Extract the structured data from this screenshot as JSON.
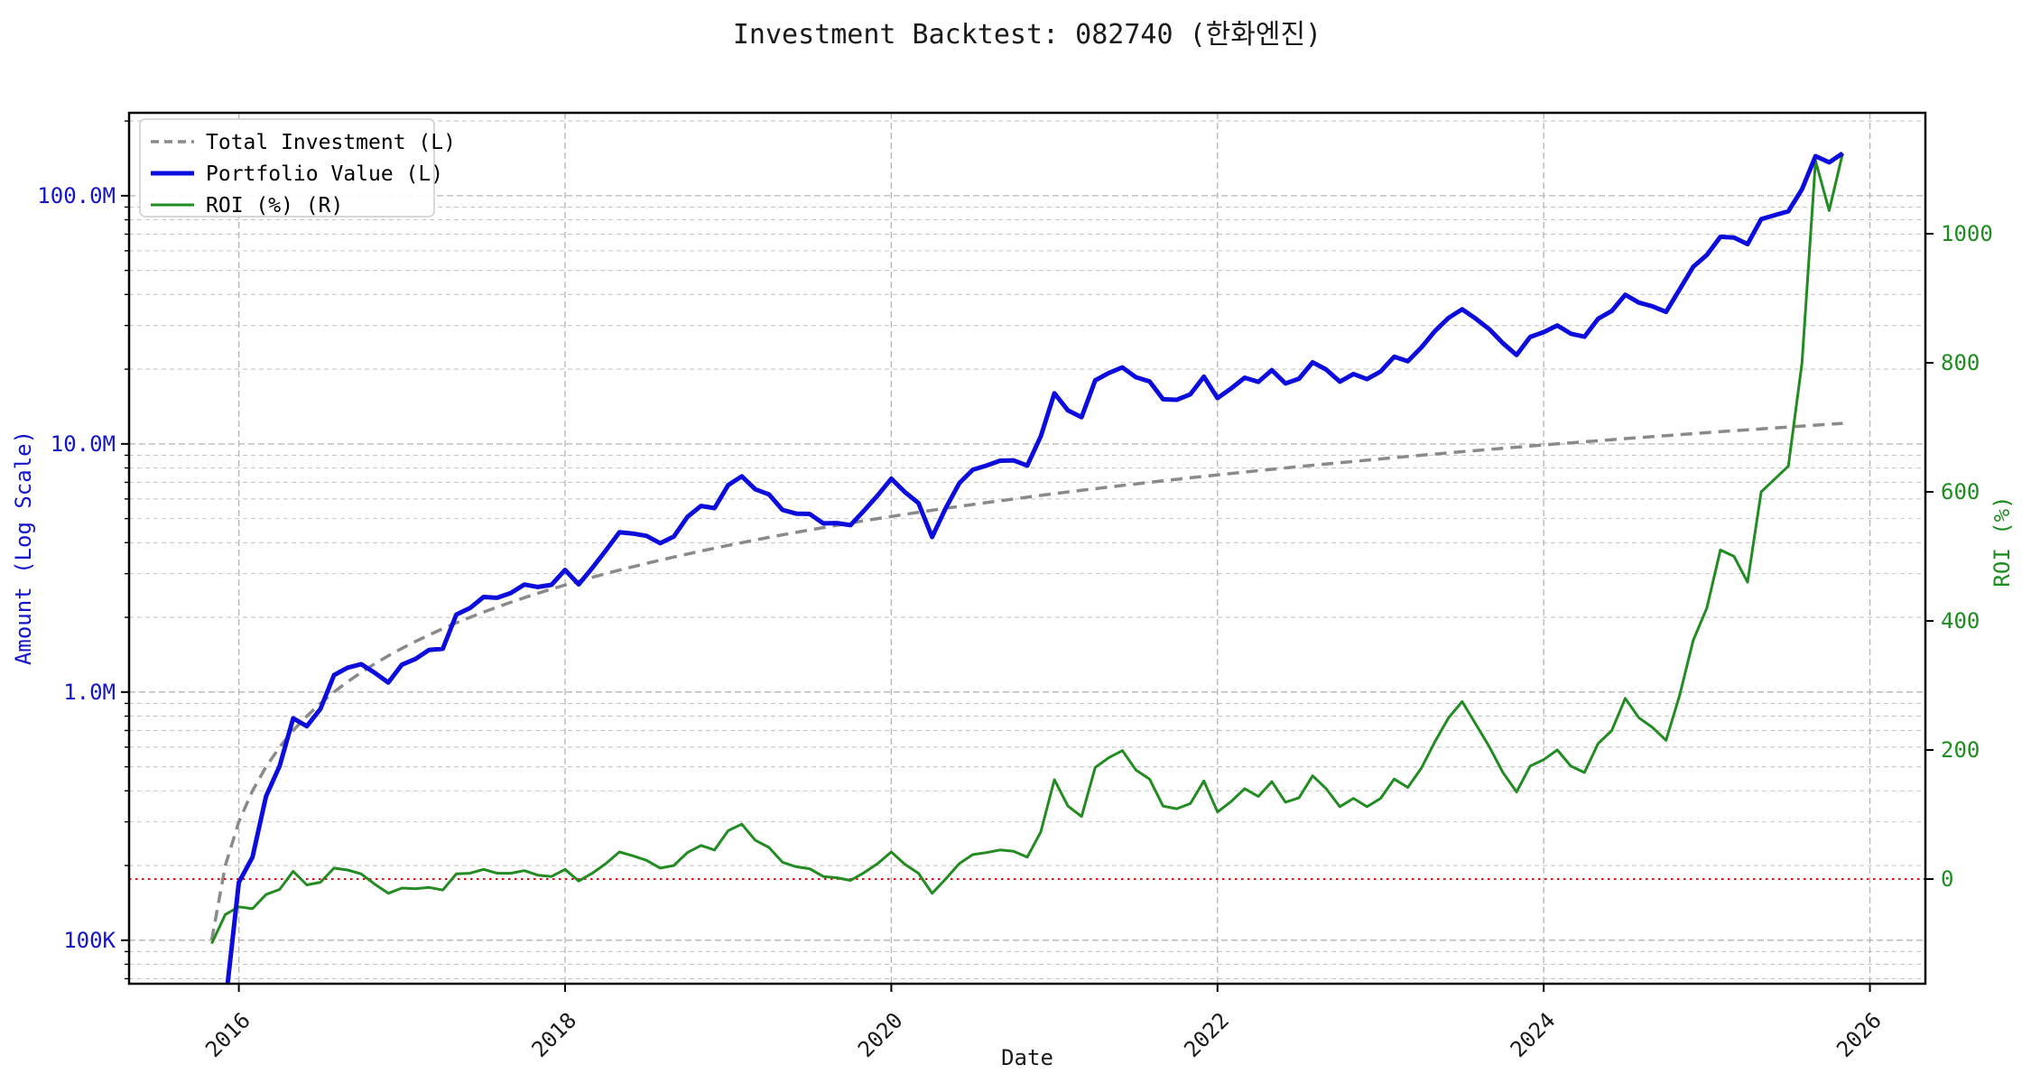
{
  "title": "Investment Backtest: 082740 (한화엔진)",
  "colors": {
    "investment": "#8a8a8a",
    "portfolio": "#0c0cdc",
    "roi": "#228b22",
    "zero_line": "#dd1111",
    "left_tick_text": "#1414cc",
    "right_tick_text": "#1e8c1e",
    "title_text": "#1a1a1a",
    "x_tick_text": "#1a1a1a"
  },
  "legend": {
    "items": [
      {
        "label": "Total Investment (L)",
        "series": "investment",
        "style": "dashed"
      },
      {
        "label": "Portfolio Value (L)",
        "series": "portfolio",
        "style": "solid"
      },
      {
        "label": "ROI (%) (R)",
        "series": "roi",
        "style": "solid"
      }
    ]
  },
  "axes": {
    "left": {
      "label": "Amount (Log Scale)",
      "ticks": [
        {
          "value_m": 100,
          "label": "100.0M"
        },
        {
          "value_m": 10,
          "label": "10.0M"
        },
        {
          "value_m": 1,
          "label": "1.0M"
        },
        {
          "value_m": 0.1,
          "label": "100K"
        }
      ]
    },
    "right": {
      "label": "ROI (%)",
      "ticks": [
        {
          "value": 0,
          "label": "0"
        },
        {
          "value": 200,
          "label": "200"
        },
        {
          "value": 400,
          "label": "400"
        },
        {
          "value": 600,
          "label": "600"
        },
        {
          "value": 800,
          "label": "800"
        },
        {
          "value": 1000,
          "label": "1000"
        }
      ]
    },
    "x": {
      "label": "Date",
      "ticks": [
        {
          "year": 2016,
          "label": "2016"
        },
        {
          "year": 2018,
          "label": "2018"
        },
        {
          "year": 2020,
          "label": "2020"
        },
        {
          "year": 2022,
          "label": "2022"
        },
        {
          "year": 2024,
          "label": "2024"
        },
        {
          "year": 2026,
          "label": "2026"
        }
      ]
    }
  },
  "chart_data": {
    "type": "line",
    "title": "Investment Backtest: 082740 (한화엔진)",
    "xlabel": "Date",
    "ylabel_left": "Amount (Log Scale)",
    "ylabel_right": "ROI (%)",
    "x_start_month": "2015-11",
    "n_months": 121,
    "x_tick_years": [
      2016,
      2018,
      2020,
      2022,
      2024,
      2026
    ],
    "xlim_years": [
      2015.327,
      2026.34
    ],
    "ylim_left_m": [
      0.0668,
      215.8
    ],
    "ylim_right": [
      -162.2,
      1187.4
    ],
    "grid": true,
    "legend_position": "upper-left",
    "zero_line": {
      "axis": "right",
      "value": 0
    },
    "series": [
      {
        "name": "Total Investment (L)",
        "axis": "left",
        "unit": "million KRW",
        "rule": "cumulative_monthly",
        "monthly_m": 0.1,
        "start_m": 0.1,
        "end_m": 12.1
      },
      {
        "name": "Portfolio Value (L)",
        "axis": "left",
        "unit": "million KRW",
        "derive": "investment*(1+roi/100)",
        "overrides_m": {
          "0": 0.02,
          "1": 0.055
        },
        "end_m": 148.2
      },
      {
        "name": "ROI (%) (R)",
        "axis": "right",
        "unit": "percent",
        "values": [
          -100,
          -55,
          -43,
          -46,
          -24,
          -16,
          12,
          -9,
          -5,
          17,
          14,
          8,
          -8,
          -22,
          -14,
          -15,
          -13,
          -17,
          8,
          9,
          15,
          9,
          9,
          13,
          6,
          4,
          15,
          -3,
          9,
          24,
          42,
          36,
          29,
          17,
          21,
          41,
          52,
          45,
          75,
          85,
          60,
          49,
          26,
          19,
          16,
          4,
          2,
          -2,
          10,
          24,
          42,
          23,
          9,
          -22,
          0,
          24,
          38,
          41,
          45,
          43,
          34,
          73,
          154,
          113,
          97,
          173,
          188,
          199,
          169,
          155,
          113,
          109,
          117,
          152,
          104,
          120,
          140,
          128,
          151,
          119,
          126,
          160,
          140,
          112,
          125,
          112,
          125,
          155,
          142,
          172,
          213,
          250,
          275,
          240,
          205,
          165,
          135,
          175,
          185,
          200,
          175,
          165,
          210,
          230,
          280,
          250,
          235,
          215,
          285,
          370,
          420,
          510,
          500,
          460,
          600,
          620,
          640,
          800,
          1113,
          1036,
          1125
        ]
      }
    ]
  }
}
